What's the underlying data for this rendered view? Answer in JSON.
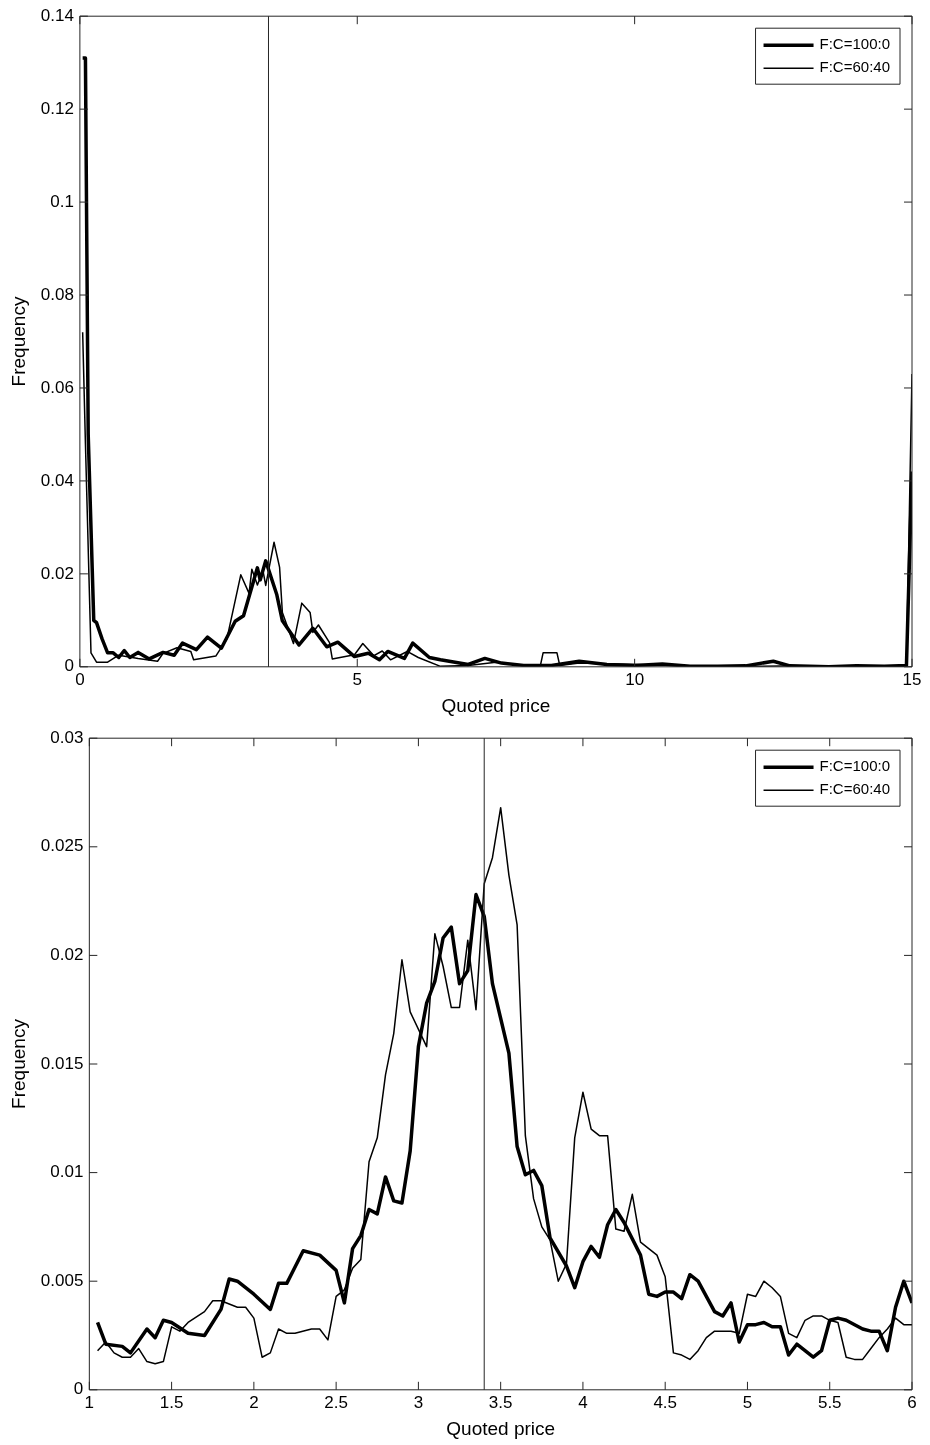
{
  "chart_data": [
    {
      "type": "line",
      "xlabel": "Quoted price",
      "ylabel": "Frequency",
      "xlim": [
        0,
        15
      ],
      "xticks": [
        0,
        5,
        10,
        15
      ],
      "ylim": [
        0,
        0.14
      ],
      "yticks": [
        0,
        0.02,
        0.04,
        0.06,
        0.08,
        0.1,
        0.12,
        0.14
      ],
      "legend": "top right",
      "ref_lines": [
        {
          "axis": "x",
          "value": 3.4
        }
      ],
      "series": [
        {
          "name": "F:C=100:0",
          "color": "#000000",
          "x": [
            0.05,
            0.1,
            0.15,
            0.25,
            0.3,
            0.4,
            0.5,
            0.6,
            0.7,
            0.8,
            0.9,
            1.05,
            1.25,
            1.5,
            1.7,
            1.85,
            2.1,
            2.3,
            2.55,
            2.8,
            2.95,
            3.2,
            3.25,
            3.35,
            3.55,
            3.65,
            3.95,
            4.2,
            4.45,
            4.65,
            4.95,
            5.2,
            5.4,
            5.55,
            5.85,
            6.0,
            6.3,
            6.5,
            7.0,
            7.3,
            7.6,
            8,
            8.5,
            9,
            9.5,
            10,
            10.5,
            11,
            11.5,
            12,
            12.5,
            12.8,
            13.5,
            14,
            14.5,
            14.9,
            15
          ],
          "values": [
            0.131,
            0.131,
            0.05,
            0.01,
            0.0095,
            0.006,
            0.003,
            0.003,
            0.002,
            0.0035,
            0.002,
            0.0031,
            0.0017,
            0.0031,
            0.0025,
            0.0051,
            0.0037,
            0.0064,
            0.004,
            0.0098,
            0.011,
            0.0213,
            0.0187,
            0.0228,
            0.0155,
            0.0099,
            0.0047,
            0.0083,
            0.0043,
            0.0053,
            0.0022,
            0.0029,
            0.0015,
            0.0033,
            0.0018,
            0.0051,
            0.002,
            0.0015,
            0.0005,
            0.0018,
            0.0008,
            0.0003,
            0.0003,
            0.0012,
            0.0005,
            0.0003,
            0.0006,
            0.0001,
            0.0001,
            0.0002,
            0.0012,
            0.0002,
            0,
            0.0002,
            0.0001,
            0.0003,
            0.042
          ]
        },
        {
          "name": "F:C=60:40",
          "color": "#000000",
          "x": [
            0.05,
            0.1,
            0.2,
            0.3,
            0.5,
            0.7,
            1.05,
            1.4,
            1.5,
            1.75,
            2.0,
            2.05,
            2.45,
            2.65,
            2.9,
            3.05,
            3.1,
            3.2,
            3.3,
            3.35,
            3.5,
            3.6,
            3.65,
            3.85,
            4.0,
            4.15,
            4.2,
            4.3,
            4.5,
            4.55,
            4.95,
            5.1,
            5.3,
            5.45,
            5.6,
            5.9,
            6.1,
            6.5,
            7,
            7.5,
            8,
            8.3,
            8.35,
            8.6,
            8.65,
            9,
            10,
            11,
            12,
            13,
            14,
            14.9,
            15
          ],
          "values": [
            0.072,
            0.048,
            0.003,
            0.001,
            0.001,
            0.0025,
            0.0018,
            0.0012,
            0.0029,
            0.0041,
            0.0033,
            0.0015,
            0.0023,
            0.006,
            0.0198,
            0.0158,
            0.021,
            0.0176,
            0.0207,
            0.0175,
            0.0268,
            0.0214,
            0.0117,
            0.005,
            0.0137,
            0.0117,
            0.0074,
            0.009,
            0.0052,
            0.0017,
            0.0026,
            0.005,
            0.0024,
            0.0034,
            0.0015,
            0.0033,
            0.002,
            0.0001,
            0.0003,
            0.001,
            0.0002,
            0.0002,
            0.003,
            0.003,
            0.0003,
            0.0008,
            0.0005,
            0.0002,
            0.0001,
            0.0002,
            0.0001,
            0.0001,
            0.063
          ]
        }
      ]
    },
    {
      "type": "line",
      "xlabel": "Quoted price",
      "ylabel": "Frequency",
      "xlim": [
        1,
        6
      ],
      "xticks": [
        1,
        1.5,
        2,
        2.5,
        3,
        3.5,
        4,
        4.5,
        5,
        5.5,
        6
      ],
      "ylim": [
        0,
        0.03
      ],
      "yticks": [
        0,
        0.005,
        0.01,
        0.015,
        0.02,
        0.025,
        0.03
      ],
      "legend": "top right",
      "ref_lines": [
        {
          "axis": "x",
          "value": 3.4
        }
      ],
      "series": [
        {
          "name": "F:C=100:0",
          "color": "#000000",
          "x": [
            1.05,
            1.1,
            1.2,
            1.25,
            1.35,
            1.4,
            1.45,
            1.5,
            1.6,
            1.7,
            1.8,
            1.85,
            1.9,
            2.0,
            2.1,
            2.15,
            2.2,
            2.3,
            2.4,
            2.5,
            2.55,
            2.6,
            2.65,
            2.7,
            2.75,
            2.8,
            2.85,
            2.9,
            2.95,
            3.0,
            3.05,
            3.1,
            3.15,
            3.2,
            3.25,
            3.3,
            3.35,
            3.4,
            3.45,
            3.55,
            3.6,
            3.65,
            3.7,
            3.75,
            3.8,
            3.9,
            3.95,
            4.0,
            4.05,
            4.1,
            4.15,
            4.2,
            4.25,
            4.35,
            4.4,
            4.45,
            4.5,
            4.55,
            4.6,
            4.65,
            4.7,
            4.8,
            4.85,
            4.9,
            4.95,
            5.0,
            5.05,
            5.1,
            5.15,
            5.2,
            5.25,
            5.3,
            5.4,
            5.45,
            5.5,
            5.55,
            5.6,
            5.7,
            5.75,
            5.8,
            5.85,
            5.9,
            5.95,
            6.0
          ],
          "values": [
            0.0031,
            0.0021,
            0.002,
            0.0017,
            0.0028,
            0.0024,
            0.0032,
            0.0031,
            0.0026,
            0.0025,
            0.0037,
            0.0051,
            0.005,
            0.0044,
            0.0037,
            0.0049,
            0.0049,
            0.0064,
            0.0062,
            0.0055,
            0.004,
            0.0065,
            0.0071,
            0.0083,
            0.0081,
            0.0098,
            0.0087,
            0.0086,
            0.011,
            0.0158,
            0.0178,
            0.0188,
            0.0208,
            0.0213,
            0.0187,
            0.0193,
            0.0228,
            0.0218,
            0.0187,
            0.0155,
            0.0112,
            0.0099,
            0.0101,
            0.0094,
            0.007,
            0.0057,
            0.0047,
            0.0059,
            0.0066,
            0.0061,
            0.0076,
            0.0083,
            0.0077,
            0.0062,
            0.0044,
            0.0043,
            0.0045,
            0.0045,
            0.0042,
            0.0053,
            0.005,
            0.0036,
            0.0034,
            0.004,
            0.0022,
            0.003,
            0.003,
            0.0031,
            0.0029,
            0.0029,
            0.0016,
            0.0021,
            0.0015,
            0.0018,
            0.0032,
            0.0033,
            0.0032,
            0.0028,
            0.0027,
            0.0027,
            0.0018,
            0.0038,
            0.005,
            0.004
          ]
        },
        {
          "name": "F:C=60:40",
          "color": "#000000",
          "x": [
            1.05,
            1.1,
            1.15,
            1.2,
            1.25,
            1.3,
            1.35,
            1.4,
            1.45,
            1.5,
            1.55,
            1.6,
            1.7,
            1.75,
            1.8,
            1.9,
            1.95,
            2.0,
            2.05,
            2.1,
            2.15,
            2.2,
            2.25,
            2.35,
            2.4,
            2.45,
            2.5,
            2.55,
            2.6,
            2.65,
            2.7,
            2.75,
            2.8,
            2.85,
            2.9,
            2.95,
            3.05,
            3.1,
            3.15,
            3.2,
            3.25,
            3.3,
            3.35,
            3.4,
            3.45,
            3.5,
            3.55,
            3.6,
            3.65,
            3.7,
            3.75,
            3.8,
            3.85,
            3.9,
            3.95,
            4.0,
            4.05,
            4.1,
            4.15,
            4.2,
            4.25,
            4.3,
            4.35,
            4.4,
            4.45,
            4.5,
            4.55,
            4.6,
            4.65,
            4.7,
            4.75,
            4.8,
            4.85,
            4.9,
            4.95,
            5.0,
            5.05,
            5.1,
            5.15,
            5.2,
            5.25,
            5.3,
            5.35,
            5.4,
            5.45,
            5.5,
            5.55,
            5.6,
            5.65,
            5.7,
            5.75,
            5.8,
            5.85,
            5.9,
            5.95,
            6.0
          ],
          "values": [
            0.0018,
            0.0022,
            0.0017,
            0.0015,
            0.0015,
            0.0019,
            0.0013,
            0.0012,
            0.0013,
            0.0029,
            0.0027,
            0.0031,
            0.0036,
            0.0041,
            0.0041,
            0.0038,
            0.0038,
            0.0033,
            0.0015,
            0.0017,
            0.0028,
            0.0026,
            0.0026,
            0.0028,
            0.0028,
            0.0023,
            0.0043,
            0.0046,
            0.0056,
            0.006,
            0.0105,
            0.0116,
            0.0145,
            0.0164,
            0.0198,
            0.0174,
            0.0158,
            0.021,
            0.0195,
            0.0176,
            0.0176,
            0.0207,
            0.0175,
            0.0233,
            0.0245,
            0.0268,
            0.0237,
            0.0214,
            0.0117,
            0.0088,
            0.0075,
            0.0069,
            0.005,
            0.0058,
            0.0116,
            0.0137,
            0.012,
            0.0117,
            0.0117,
            0.0074,
            0.0073,
            0.009,
            0.0068,
            0.0065,
            0.0062,
            0.0052,
            0.0017,
            0.0016,
            0.0014,
            0.0018,
            0.0024,
            0.0027,
            0.0027,
            0.0027,
            0.0026,
            0.0044,
            0.0043,
            0.005,
            0.0047,
            0.0043,
            0.0026,
            0.0024,
            0.0032,
            0.0034,
            0.0034,
            0.0032,
            0.0031,
            0.0015,
            0.0014,
            0.0014,
            0.0019,
            0.0024,
            0.0028,
            0.0033,
            0.003,
            0.003
          ]
        }
      ]
    }
  ]
}
